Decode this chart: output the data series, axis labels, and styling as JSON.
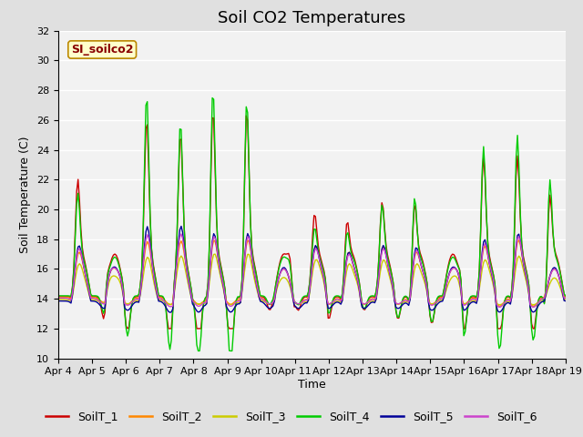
{
  "title": "Soil CO2 Temperatures",
  "xlabel": "Time",
  "ylabel": "Soil Temperature (C)",
  "ylim": [
    10,
    32
  ],
  "yticks": [
    10,
    12,
    14,
    16,
    18,
    20,
    22,
    24,
    26,
    28,
    30,
    32
  ],
  "date_labels": [
    "Apr 4",
    "Apr 5",
    "Apr 6",
    "Apr 7",
    "Apr 8",
    "Apr 9",
    "Apr 10",
    "Apr 11",
    "Apr 12",
    "Apr 13",
    "Apr 14",
    "Apr 15",
    "Apr 16",
    "Apr 17",
    "Apr 18",
    "Apr 19"
  ],
  "annotation_text": "SI_soilco2",
  "annotation_bbox_facecolor": "#ffffcc",
  "annotation_bbox_edgecolor": "#bb8800",
  "annotation_text_color": "#880000",
  "series_colors": [
    "#cc0000",
    "#ff8800",
    "#cccc00",
    "#00cc00",
    "#000099",
    "#cc44cc"
  ],
  "series_labels": [
    "SoilT_1",
    "SoilT_2",
    "SoilT_3",
    "SoilT_4",
    "SoilT_5",
    "SoilT_6"
  ],
  "background_color": "#e0e0e0",
  "plot_bg_color": "#f2f2f2",
  "grid_color": "#ffffff",
  "title_fontsize": 13,
  "axis_label_fontsize": 9,
  "tick_fontsize": 8,
  "legend_fontsize": 9,
  "figwidth": 6.4,
  "figheight": 4.8,
  "dpi": 100
}
